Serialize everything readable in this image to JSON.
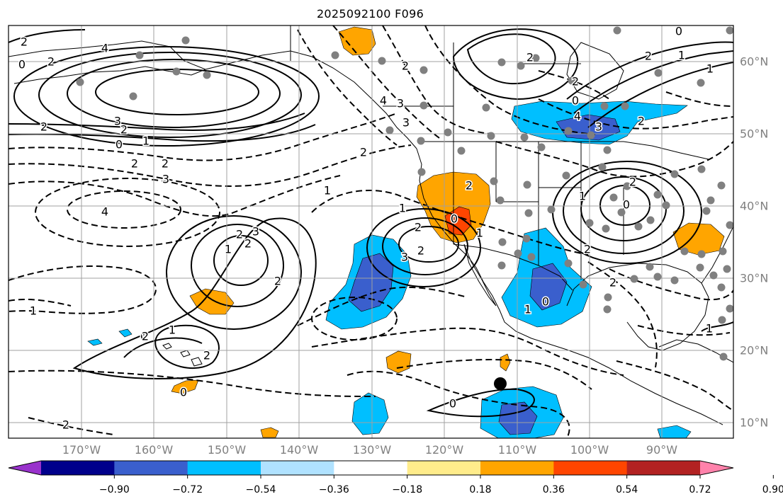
{
  "map": {
    "title": "2025092100 F096",
    "lon_labels": [
      "170°W",
      "160°W",
      "150°W",
      "140°W",
      "130°W",
      "120°W",
      "110°W",
      "100°W",
      "90°W"
    ],
    "lat_labels": [
      "60°N",
      "50°N",
      "40°N",
      "30°N",
      "20°N",
      "10°N"
    ],
    "contour_labels": [
      "2",
      "0",
      "2",
      "4",
      "3",
      "2",
      "0",
      "1",
      "2",
      "3",
      "4",
      "2",
      "2",
      "3",
      "2",
      "1",
      "2",
      "2",
      "1",
      "0",
      "2",
      "1",
      "2",
      "2",
      "4",
      "3",
      "3",
      "1",
      "2",
      "2",
      "3",
      "2",
      "0",
      "1",
      "2",
      "2",
      "0",
      "4",
      "3",
      "2",
      "2",
      "1",
      "1",
      "0",
      "2",
      "0",
      "1",
      "2",
      "0",
      "2",
      "1",
      "0",
      "1",
      "1",
      "2",
      "2",
      "0"
    ],
    "marker_color": "#808080",
    "storm_marker_color": "#000000"
  },
  "colorbar": {
    "ticks": [
      "−0.90",
      "−0.72",
      "−0.54",
      "−0.36",
      "−0.18",
      "0.18",
      "0.36",
      "0.54",
      "0.72",
      "0.90"
    ],
    "colors": [
      "#9932cc",
      "#00008b",
      "#3a5fcd",
      "#00bfff",
      "#b0e2ff",
      "#ffffff",
      "#ffec8b",
      "#ffa500",
      "#ff4500",
      "#b22222",
      "#ff82ab"
    ]
  }
}
